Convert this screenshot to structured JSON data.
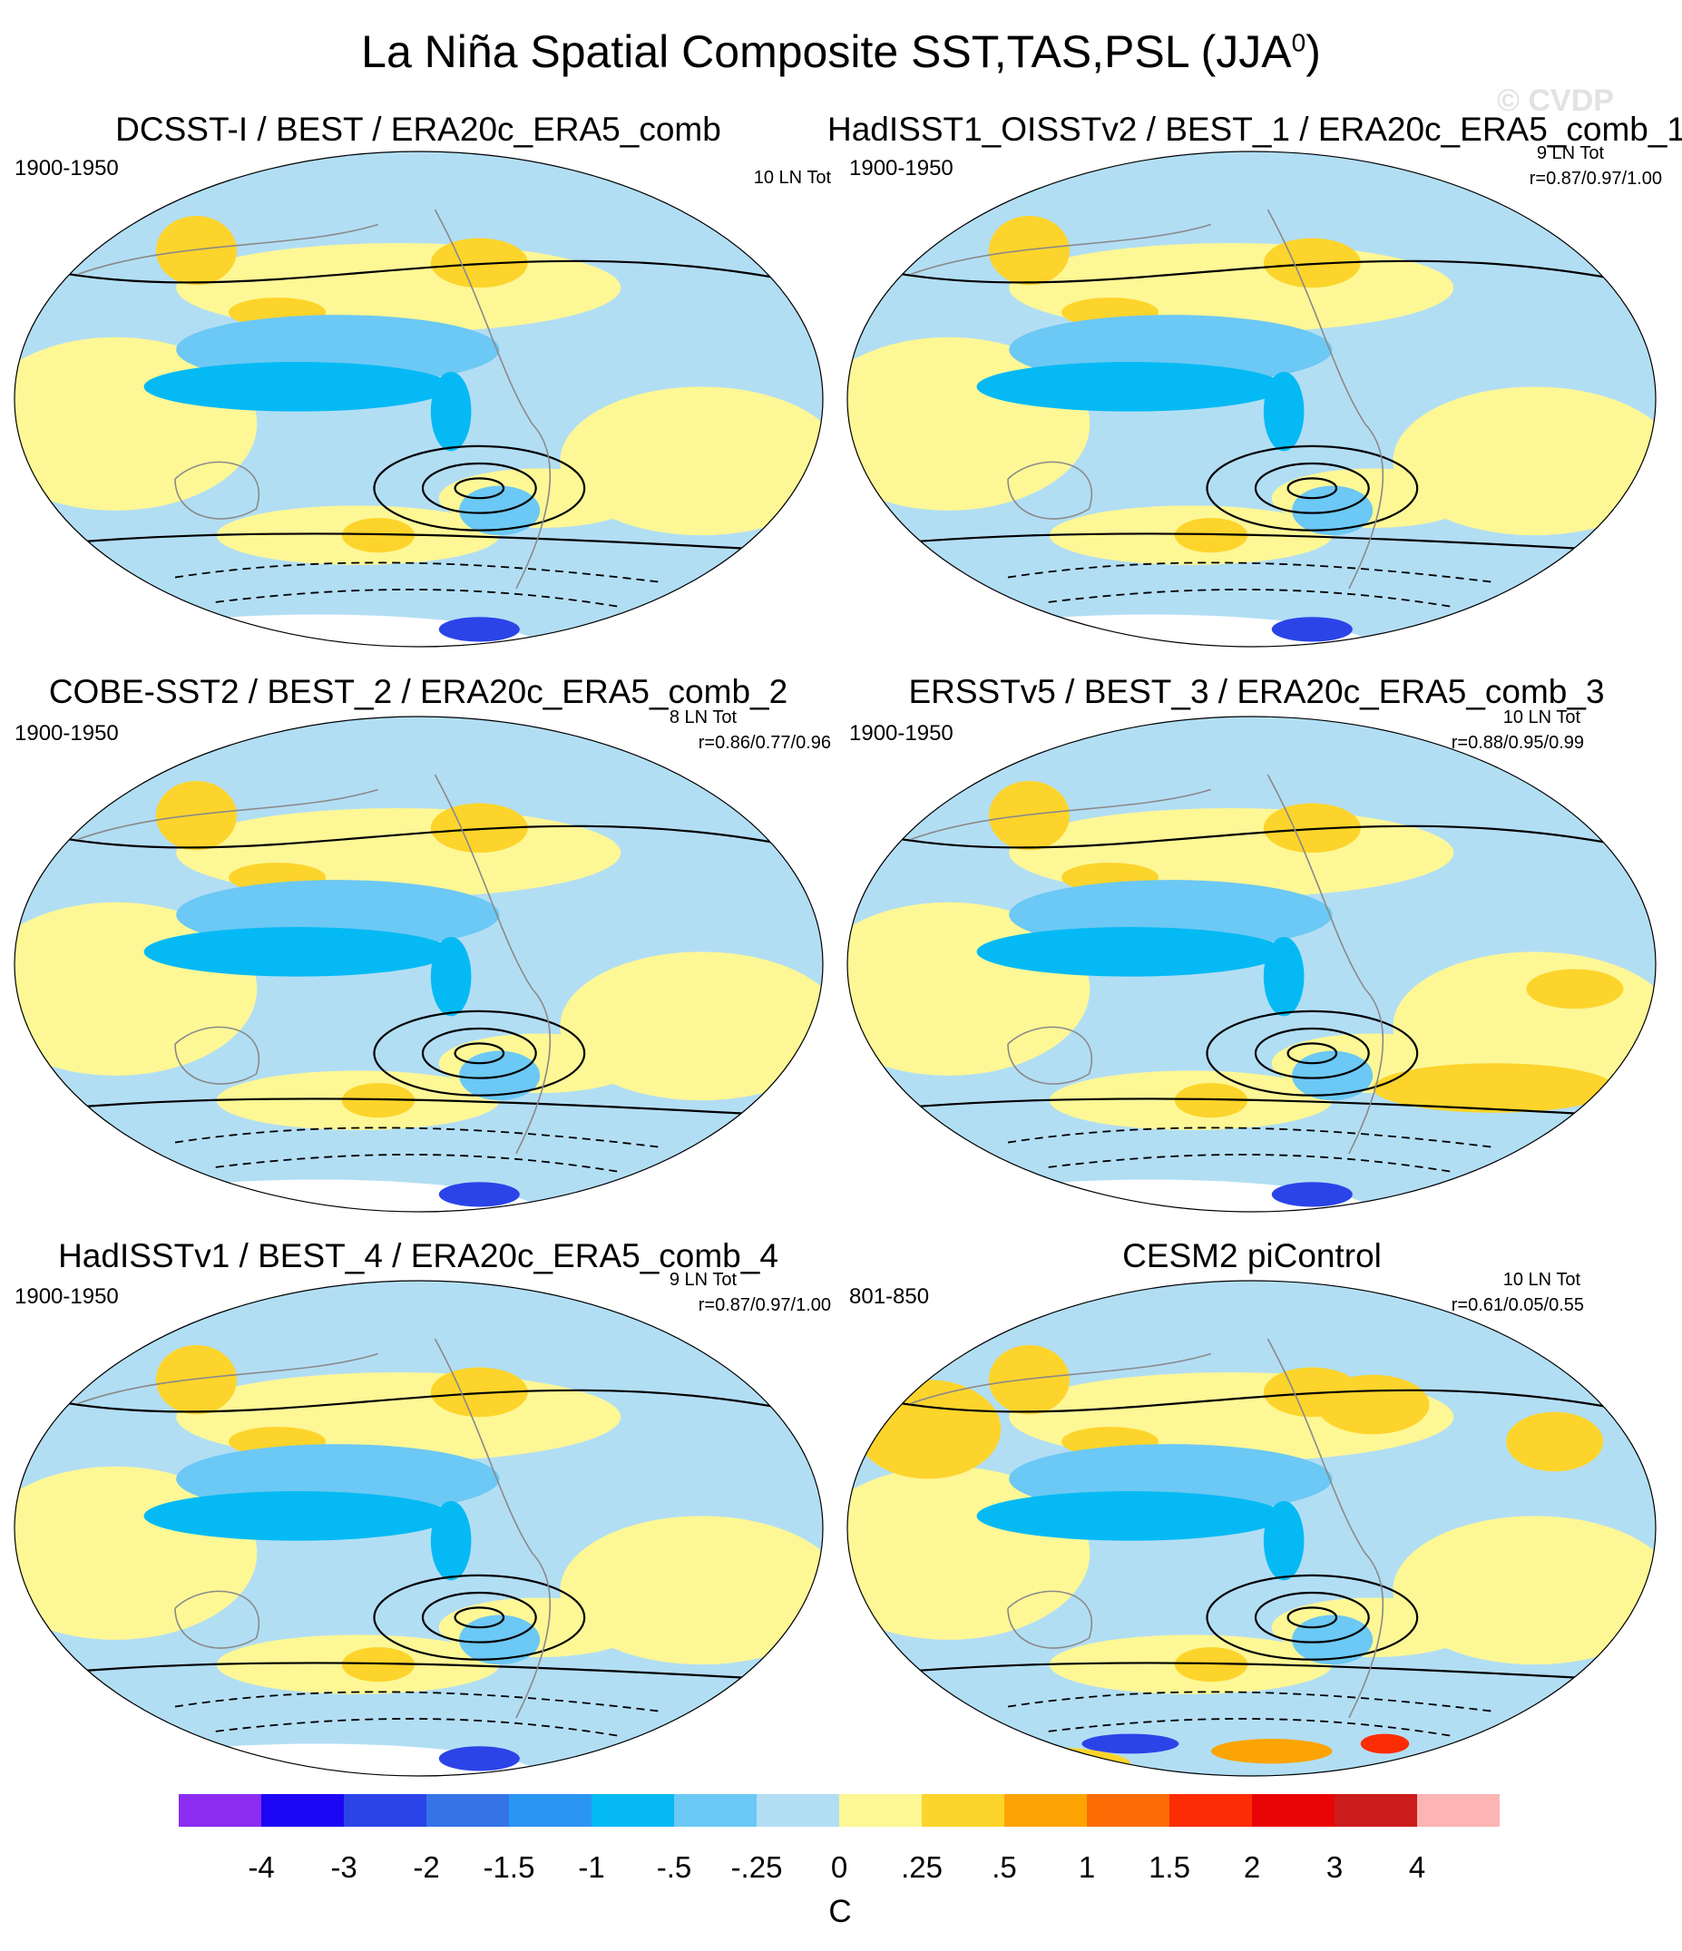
{
  "figure": {
    "title": "La Niña Spatial Composite SST,TAS,PSL (JJA",
    "title_sup": "0",
    "title_close": ")",
    "watermark": "© CVDP"
  },
  "panels": [
    {
      "title": "DCSST-I / BEST / ERA20c_ERA5_comb",
      "period": "1900-1950",
      "count": "10 LN Tot",
      "corr": ""
    },
    {
      "title": "HadISST1_OISSTv2 / BEST_1 / ERA20c_ERA5_comb_1",
      "period": "1900-1950",
      "count": "9 LN Tot",
      "corr": "r=0.87/0.97/1.00"
    },
    {
      "title": "COBE-SST2 / BEST_2 / ERA20c_ERA5_comb_2",
      "period": "1900-1950",
      "count": "8 LN Tot",
      "corr": "r=0.86/0.77/0.96"
    },
    {
      "title": "ERSSTv5 / BEST_3 / ERA20c_ERA5_comb_3",
      "period": "1900-1950",
      "count": "10 LN Tot",
      "corr": "r=0.88/0.95/0.99"
    },
    {
      "title": "HadISSTv1 / BEST_4 / ERA20c_ERA5_comb_4",
      "period": "1900-1950",
      "count": "9 LN Tot",
      "corr": "r=0.87/0.97/1.00"
    },
    {
      "title": "CESM2 piControl",
      "period": "801-850",
      "count": "10 LN Tot",
      "corr": "r=0.61/0.05/0.55"
    }
  ],
  "colorbar": {
    "unit": "C",
    "labels": [
      "-4",
      "-3",
      "-2",
      "-1.5",
      "-1",
      "-.5",
      "-.25",
      "0",
      ".25",
      ".5",
      "1",
      "1.5",
      "2",
      "3",
      "4"
    ],
    "colors": [
      "#8b2cf0",
      "#1d06f4",
      "#2b44e8",
      "#3574e6",
      "#2b95f4",
      "#05baf4",
      "#6cc8f4",
      "#b2def4",
      "#fdf796",
      "#fdd42b",
      "#fca404",
      "#fc6c04",
      "#fc2c04",
      "#e80404",
      "#cc1c1c",
      "#fcb4b4"
    ]
  }
}
